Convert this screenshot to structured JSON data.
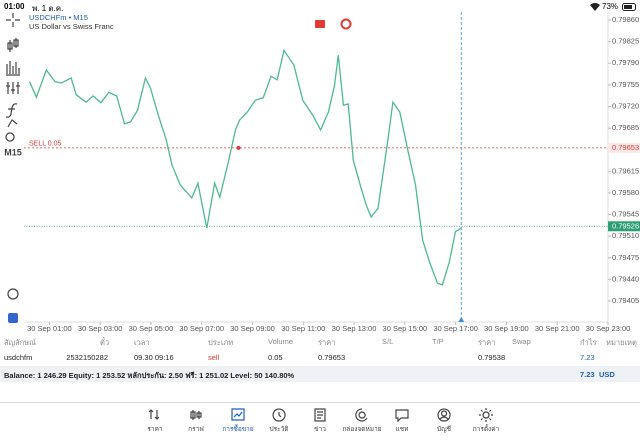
{
  "status": {
    "time": "01:00",
    "date": "พ. 1 ต.ค.",
    "battery": "73%"
  },
  "timeframe": "M15",
  "chart_data": {
    "type": "line",
    "title": "USDCHFm • M15",
    "subtitle": "US Dollar vs Swiss Franc",
    "x": [
      0.22,
      0.49,
      0.88,
      1.23,
      1.47,
      1.86,
      2.05,
      2.44,
      2.72,
      3.03,
      3.34,
      3.65,
      3.96,
      4.2,
      4.47,
      4.78,
      4.98,
      5.29,
      5.6,
      5.83,
      6.15,
      6.61,
      6.85,
      7.2,
      7.51,
      7.71,
      8.02,
      8.33,
      8.49,
      8.8,
      9.11,
      9.42,
      9.73,
      9.97,
      10.24,
      10.63,
      10.98,
      11.37,
      11.68,
      11.99,
      12.23,
      12.38,
      12.58,
      12.77,
      12.97,
      13.24,
      13.48,
      13.67,
      13.94,
      14.33,
      14.53,
      14.8,
      15.11,
      15.42,
      15.7,
      15.97,
      16.28,
      16.48,
      16.75,
      16.99,
      17.22
    ],
    "series": [
      {
        "color": "#4dba8f",
        "values": [
          0.7976,
          0.79735,
          0.79779,
          0.7976,
          0.79758,
          0.79766,
          0.79739,
          0.79727,
          0.79737,
          0.79726,
          0.79743,
          0.79737,
          0.79692,
          0.79695,
          0.79714,
          0.79766,
          0.7975,
          0.79706,
          0.79666,
          0.79625,
          0.79593,
          0.79572,
          0.79596,
          0.79523,
          0.79596,
          0.79573,
          0.79625,
          0.79682,
          0.79698,
          0.79711,
          0.7973,
          0.79734,
          0.79769,
          0.79763,
          0.79811,
          0.79787,
          0.7973,
          0.79706,
          0.79682,
          0.79711,
          0.79754,
          0.79803,
          0.79722,
          0.79724,
          0.79633,
          0.79593,
          0.7956,
          0.79541,
          0.79555,
          0.79666,
          0.79727,
          0.79711,
          0.7965,
          0.79593,
          0.79504,
          0.79468,
          0.79434,
          0.79431,
          0.79468,
          0.79517,
          0.79523
        ]
      }
    ],
    "xlim": [
      0,
      23
    ],
    "xticks": [
      {
        "value": 1,
        "label": "30 Sep 01:00"
      },
      {
        "value": 3,
        "label": "30 Sep 03:00"
      },
      {
        "value": 5,
        "label": "30 Sep 05:00"
      },
      {
        "value": 7,
        "label": "30 Sep 07:00"
      },
      {
        "value": 9,
        "label": "30 Sep 09:00"
      },
      {
        "value": 11,
        "label": "30 Sep 11:00"
      },
      {
        "value": 13,
        "label": "30 Sep 13:00"
      },
      {
        "value": 15,
        "label": "30 Sep 15:00"
      },
      {
        "value": 17,
        "label": "30 Sep 17:00"
      },
      {
        "value": 19,
        "label": "30 Sep 19:00"
      },
      {
        "value": 21,
        "label": "30 Sep 21:00"
      },
      {
        "value": 23,
        "label": "30 Sep 23:00"
      }
    ],
    "ylim": [
      0.79371,
      0.79873
    ],
    "yticks": [
      {
        "value": 0.7986,
        "label": "0.79860"
      },
      0.79825,
      {
        "value": 0.7979,
        "label": "0.79790"
      },
      0.79755,
      {
        "value": 0.7972,
        "label": "0.79720"
      },
      0.79685,
      0.79615,
      {
        "value": 0.7958,
        "label": "0.79580"
      },
      0.79545,
      {
        "value": 0.7951,
        "label": "0.79510"
      },
      0.79475,
      {
        "value": 0.7944,
        "label": "0.79440"
      },
      0.79405
    ],
    "grid": false,
    "sell_line": {
      "value": 0.79653,
      "label": "0.79653",
      "text": "SELL 0.05",
      "color": "#e53935",
      "marker_x": 8.45
    },
    "price_line": {
      "value": 0.79526,
      "label": "0.79526",
      "color": "#2e9e74"
    },
    "time_cursor": 17.22
  },
  "table": {
    "header": [
      "สัญลักษณ์",
      "ตั๋ว",
      "เวลา",
      "ประเภท",
      "Volume",
      "ราคา",
      "S/L",
      "T/P",
      "ราคา",
      "Swap",
      "กำไร",
      "หมายเหตุ"
    ],
    "rows": [
      [
        "usdchfm",
        "2532150282",
        "09.30 09:16",
        "sell",
        "0.05",
        "0.79653",
        "",
        "",
        "0.79538",
        "",
        "7.23",
        ""
      ]
    ]
  },
  "balance": {
    "text": "Balance: 1 246.29 Equity: 1 253.52 หลักประกัน: 2.50 ฟรี: 1 251.02 Level: 50 140.80%",
    "profit": "7.23",
    "currency": "USD"
  },
  "nav": [
    "ราคา",
    "กราฟ",
    "การซื้อขาย",
    "ประวัติ",
    "ข่าว",
    "กล่องจดหมาย",
    "แชท",
    "บัญชี",
    "การตั้งค่า"
  ]
}
